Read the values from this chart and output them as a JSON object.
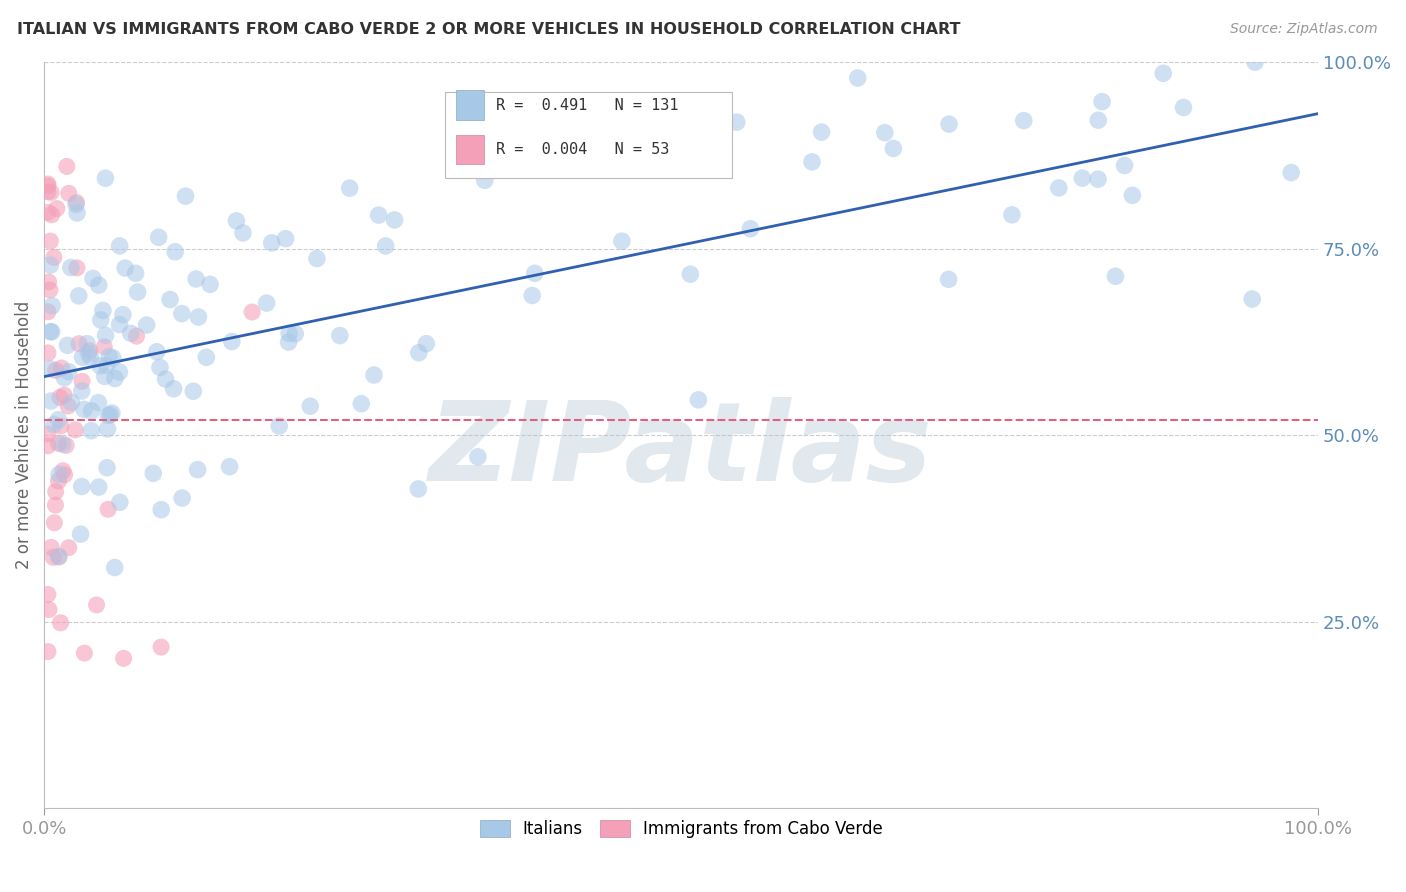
{
  "title": "ITALIAN VS IMMIGRANTS FROM CABO VERDE 2 OR MORE VEHICLES IN HOUSEHOLD CORRELATION CHART",
  "source": "Source: ZipAtlas.com",
  "ylabel": "2 or more Vehicles in Household",
  "y_tick_labels": [
    "25.0%",
    "50.0%",
    "75.0%",
    "100.0%"
  ],
  "y_tick_positions": [
    0.25,
    0.5,
    0.75,
    1.0
  ],
  "legend_italians": "Italians",
  "legend_cabo": "Immigrants from Cabo Verde",
  "watermark": "ZIPatlas",
  "watermark_color": "#C8D8E8",
  "background_color": "#FFFFFF",
  "grid_color": "#CCCCCC",
  "blue_color": "#A8C8E8",
  "pink_color": "#F4A0B8",
  "blue_line_color": "#3060B0",
  "pink_line_color": "#E06080",
  "axis_label_color": "#5B8DB8",
  "title_color": "#333333"
}
